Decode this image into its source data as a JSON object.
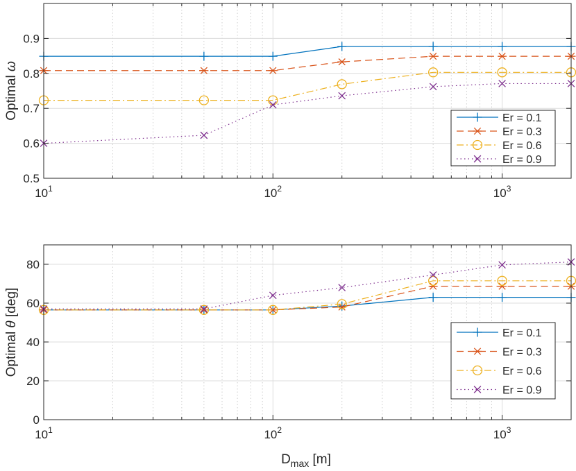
{
  "chart_data": [
    {
      "type": "line",
      "x_scale": "log",
      "xlim": [
        10,
        2000
      ],
      "ylim": [
        0.5,
        1.0
      ],
      "yticks": [
        0.5,
        0.6,
        0.7,
        0.8,
        0.9
      ],
      "ytick_labels": [
        "0.5",
        "0.6",
        "0.7",
        "0.8",
        "0.9"
      ],
      "xticks": [
        10,
        100,
        1000
      ],
      "xtick_labels": [
        {
          "base": "10",
          "exp": "1"
        },
        {
          "base": "10",
          "exp": "2"
        },
        {
          "base": "10",
          "exp": "3"
        }
      ],
      "ylabel": "Optimal",
      "ylabel_symbol": "ω",
      "xlabel": "",
      "grid": true,
      "legend_position": "inside-right",
      "x": [
        10,
        50,
        100,
        200,
        500,
        1000,
        2000
      ],
      "series": [
        {
          "name": "Er = 0.1",
          "color": "#0072BD",
          "marker": "plus",
          "dash": "solid",
          "values": [
            0.849,
            0.849,
            0.849,
            0.877,
            0.877,
            0.877,
            0.877
          ]
        },
        {
          "name": "Er = 0.3",
          "color": "#D95319",
          "marker": "asterisk",
          "dash": "dashed",
          "values": [
            0.808,
            0.808,
            0.808,
            0.833,
            0.849,
            0.849,
            0.849
          ]
        },
        {
          "name": "Er = 0.6",
          "color": "#EDB120",
          "marker": "circle",
          "dash": "dashdot",
          "values": [
            0.723,
            0.723,
            0.723,
            0.769,
            0.803,
            0.803,
            0.803
          ]
        },
        {
          "name": "Er = 0.9",
          "color": "#7E2F8E",
          "marker": "x",
          "dash": "dotted",
          "values": [
            0.6,
            0.623,
            0.71,
            0.736,
            0.762,
            0.771,
            0.771
          ]
        }
      ]
    },
    {
      "type": "line",
      "x_scale": "log",
      "xlim": [
        10,
        2000
      ],
      "ylim": [
        0,
        90
      ],
      "yticks": [
        0,
        20,
        40,
        60,
        80
      ],
      "ytick_labels": [
        "0",
        "20",
        "40",
        "60",
        "80"
      ],
      "xticks": [
        10,
        100,
        1000
      ],
      "xtick_labels": [
        {
          "base": "10",
          "exp": "1"
        },
        {
          "base": "10",
          "exp": "2"
        },
        {
          "base": "10",
          "exp": "3"
        }
      ],
      "ylabel": "Optimal",
      "ylabel_symbol": "θ",
      "ylabel_unit": "[deg]",
      "xlabel_main": "D",
      "xlabel_sub": "max",
      "xlabel_unit": "[m]",
      "grid": true,
      "legend_position": "lower-right",
      "x": [
        10,
        50,
        100,
        200,
        500,
        1000,
        2000
      ],
      "series": [
        {
          "name": "Er = 0.1",
          "color": "#0072BD",
          "marker": "plus",
          "dash": "solid",
          "values": [
            56.5,
            56.5,
            56.5,
            58.5,
            63,
            63,
            63
          ]
        },
        {
          "name": "Er = 0.3",
          "color": "#D95319",
          "marker": "asterisk",
          "dash": "dashed",
          "values": [
            56.5,
            56.5,
            56.5,
            58,
            68.7,
            68.7,
            68.7
          ]
        },
        {
          "name": "Er = 0.6",
          "color": "#EDB120",
          "marker": "circle",
          "dash": "dashdot",
          "values": [
            56.5,
            56.5,
            56.5,
            59.5,
            71.5,
            71.5,
            71.5
          ]
        },
        {
          "name": "Er = 0.9",
          "color": "#7E2F8E",
          "marker": "x",
          "dash": "dotted",
          "values": [
            57,
            57,
            64,
            68,
            74.5,
            79.7,
            81.2
          ]
        }
      ]
    }
  ]
}
